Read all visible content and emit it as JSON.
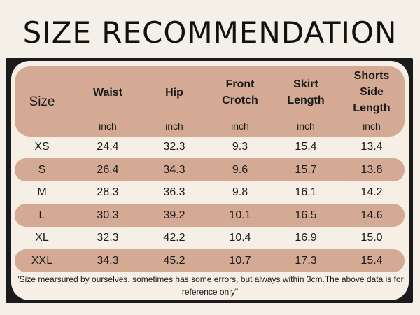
{
  "title": "SIZE RECOMMENDATION",
  "table": {
    "columns": [
      {
        "label": "Size",
        "unit": ""
      },
      {
        "label": "Waist",
        "unit": "inch"
      },
      {
        "label": "Hip",
        "unit": "inch"
      },
      {
        "label": "Front Crotch",
        "unit": "inch"
      },
      {
        "label": "Skirt Length",
        "unit": "inch"
      },
      {
        "label": "Shorts Side Length",
        "unit": "inch"
      }
    ],
    "rows": [
      [
        "XS",
        "24.4",
        "32.3",
        "9.3",
        "15.4",
        "13.4"
      ],
      [
        "S",
        "26.4",
        "34.3",
        "9.6",
        "15.7",
        "13.8"
      ],
      [
        "M",
        "28.3",
        "36.3",
        "9.8",
        "16.1",
        "14.2"
      ],
      [
        "L",
        "30.3",
        "39.2",
        "10.1",
        "16.5",
        "14.6"
      ],
      [
        "XL",
        "32.3",
        "42.2",
        "10.4",
        "16.9",
        "15.0"
      ],
      [
        "XXL",
        "34.3",
        "45.2",
        "10.7",
        "17.3",
        "15.4"
      ]
    ]
  },
  "note": "\"Size mearsured by ourselves, sometimes has some errors, but always within 3cm.The above data is for reference only\"",
  "colors": {
    "band": "#d4aa94",
    "background": "#f4efe7",
    "frame": "#1b1b1b"
  }
}
